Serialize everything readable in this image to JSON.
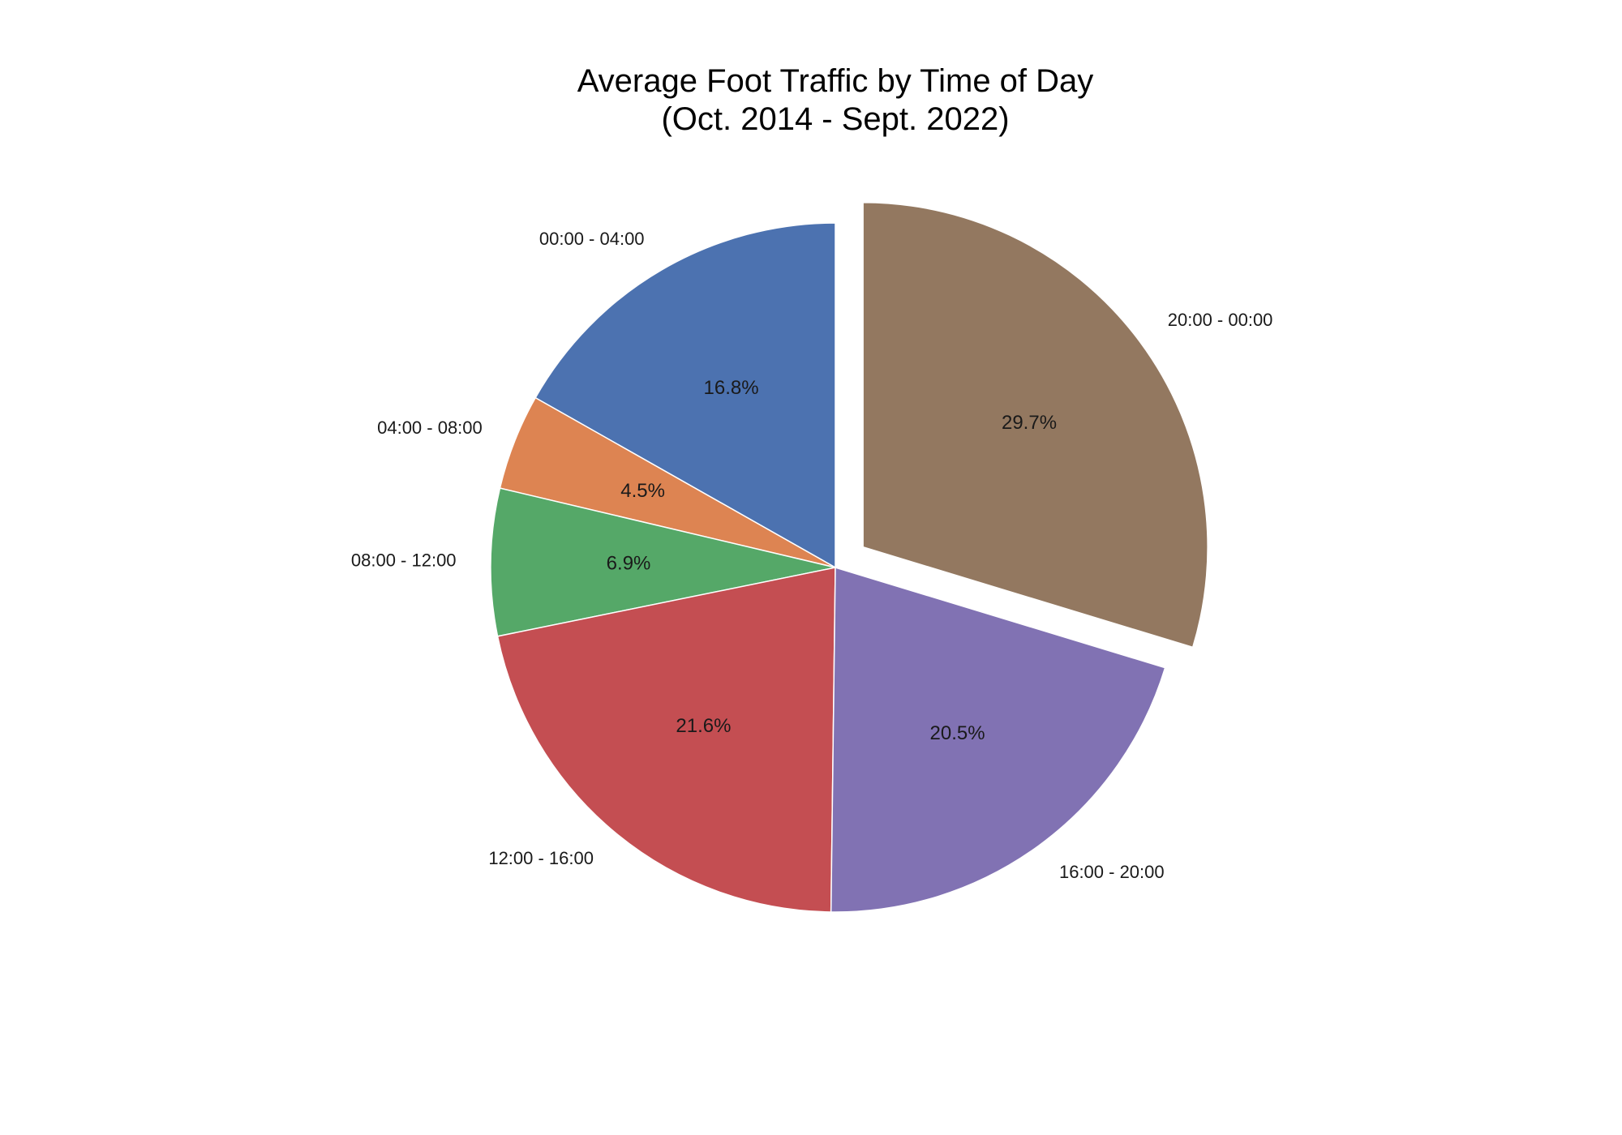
{
  "chart_data": {
    "type": "pie",
    "title": "Average Foot Traffic by Time of Day",
    "subtitle": "(Oct. 2014 - Sept. 2022)",
    "slices": [
      {
        "label": "00:00 - 04:00",
        "value": 16.8,
        "pct_label": "16.8%",
        "color": "#4c72b0",
        "explode": false
      },
      {
        "label": "04:00 - 08:00",
        "value": 4.5,
        "pct_label": "4.5%",
        "color": "#dd8452",
        "explode": false
      },
      {
        "label": "08:00 - 12:00",
        "value": 6.9,
        "pct_label": "6.9%",
        "color": "#55a868",
        "explode": false
      },
      {
        "label": "12:00 - 16:00",
        "value": 21.6,
        "pct_label": "21.6%",
        "color": "#c44e52",
        "explode": false
      },
      {
        "label": "16:00 - 20:00",
        "value": 20.5,
        "pct_label": "20.5%",
        "color": "#8172b3",
        "explode": false
      },
      {
        "label": "20:00 - 00:00",
        "value": 29.7,
        "pct_label": "29.7%",
        "color": "#937860",
        "explode": true
      }
    ],
    "start_angle": "top",
    "direction": "counterclockwise",
    "legend": "none"
  }
}
